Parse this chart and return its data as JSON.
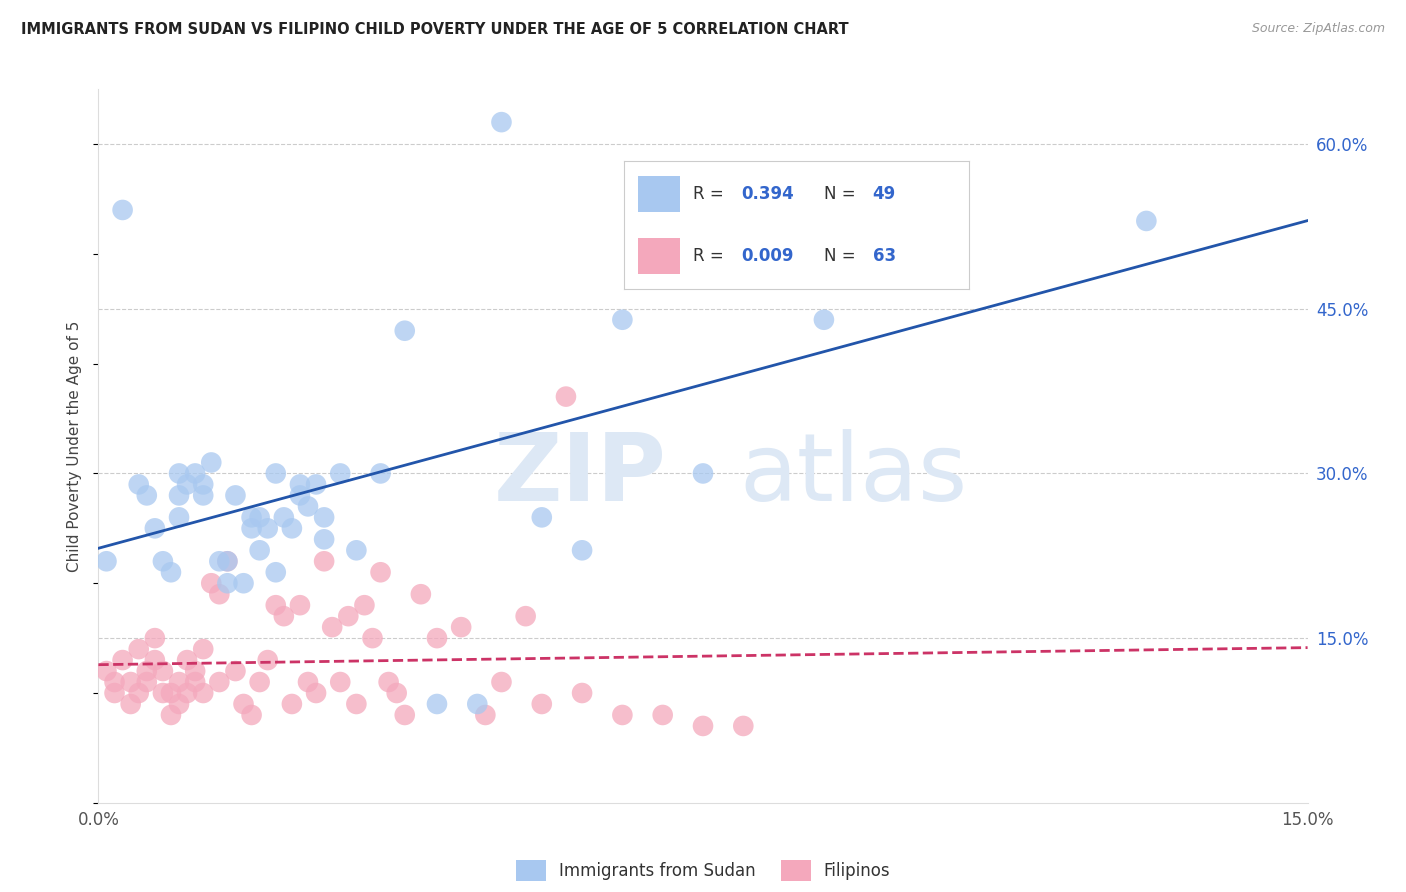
{
  "title": "IMMIGRANTS FROM SUDAN VS FILIPINO CHILD POVERTY UNDER THE AGE OF 5 CORRELATION CHART",
  "source": "Source: ZipAtlas.com",
  "ylabel": "Child Poverty Under the Age of 5",
  "xlim": [
    0.0,
    0.15
  ],
  "ylim": [
    0.0,
    0.65
  ],
  "yticks": [
    0.0,
    0.15,
    0.3,
    0.45,
    0.6
  ],
  "ytick_labels_right": [
    "",
    "15.0%",
    "30.0%",
    "45.0%",
    "60.0%"
  ],
  "r_sudan": 0.394,
  "n_sudan": 49,
  "r_filipino": 0.009,
  "n_filipino": 63,
  "color_sudan": "#a8c8f0",
  "color_filipino": "#f4a8bc",
  "line_color_sudan": "#2255aa",
  "line_color_filipino": "#cc3366",
  "background_color": "#ffffff",
  "grid_color": "#cccccc",
  "text_color_blue": "#3366cc",
  "sudan_x": [
    0.001,
    0.003,
    0.005,
    0.006,
    0.007,
    0.008,
    0.009,
    0.01,
    0.01,
    0.011,
    0.012,
    0.013,
    0.014,
    0.015,
    0.016,
    0.017,
    0.018,
    0.019,
    0.02,
    0.02,
    0.021,
    0.022,
    0.023,
    0.024,
    0.025,
    0.026,
    0.027,
    0.028,
    0.03,
    0.032,
    0.035,
    0.038,
    0.042,
    0.047,
    0.05,
    0.055,
    0.06,
    0.065,
    0.075,
    0.09,
    0.1,
    0.13,
    0.01,
    0.013,
    0.016,
    0.019,
    0.022,
    0.025,
    0.028
  ],
  "sudan_y": [
    0.22,
    0.54,
    0.29,
    0.28,
    0.25,
    0.22,
    0.21,
    0.26,
    0.28,
    0.29,
    0.3,
    0.28,
    0.31,
    0.22,
    0.22,
    0.28,
    0.2,
    0.26,
    0.26,
    0.23,
    0.25,
    0.21,
    0.26,
    0.25,
    0.29,
    0.27,
    0.29,
    0.24,
    0.3,
    0.23,
    0.3,
    0.43,
    0.09,
    0.09,
    0.62,
    0.26,
    0.23,
    0.44,
    0.3,
    0.44,
    0.57,
    0.53,
    0.3,
    0.29,
    0.2,
    0.25,
    0.3,
    0.28,
    0.26
  ],
  "filipino_x": [
    0.001,
    0.002,
    0.002,
    0.003,
    0.004,
    0.004,
    0.005,
    0.005,
    0.006,
    0.006,
    0.007,
    0.007,
    0.008,
    0.008,
    0.009,
    0.009,
    0.01,
    0.01,
    0.011,
    0.011,
    0.012,
    0.012,
    0.013,
    0.013,
    0.014,
    0.015,
    0.015,
    0.016,
    0.017,
    0.018,
    0.019,
    0.02,
    0.021,
    0.022,
    0.023,
    0.024,
    0.025,
    0.026,
    0.027,
    0.028,
    0.029,
    0.03,
    0.031,
    0.032,
    0.033,
    0.034,
    0.035,
    0.036,
    0.037,
    0.038,
    0.04,
    0.042,
    0.045,
    0.048,
    0.05,
    0.053,
    0.055,
    0.058,
    0.06,
    0.065,
    0.07,
    0.075,
    0.08
  ],
  "filipino_y": [
    0.12,
    0.1,
    0.11,
    0.13,
    0.11,
    0.09,
    0.14,
    0.1,
    0.12,
    0.11,
    0.15,
    0.13,
    0.1,
    0.12,
    0.08,
    0.1,
    0.11,
    0.09,
    0.13,
    0.1,
    0.12,
    0.11,
    0.14,
    0.1,
    0.2,
    0.19,
    0.11,
    0.22,
    0.12,
    0.09,
    0.08,
    0.11,
    0.13,
    0.18,
    0.17,
    0.09,
    0.18,
    0.11,
    0.1,
    0.22,
    0.16,
    0.11,
    0.17,
    0.09,
    0.18,
    0.15,
    0.21,
    0.11,
    0.1,
    0.08,
    0.19,
    0.15,
    0.16,
    0.08,
    0.11,
    0.17,
    0.09,
    0.37,
    0.1,
    0.08,
    0.08,
    0.07,
    0.07
  ]
}
